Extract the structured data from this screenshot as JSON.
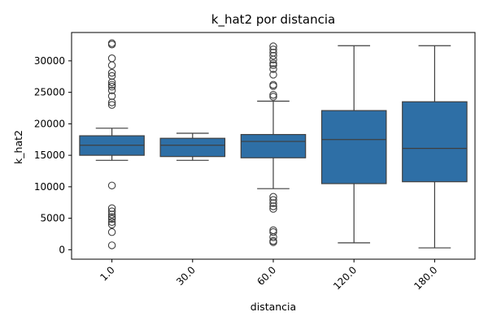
{
  "chart_data": {
    "type": "box",
    "title": "k_hat2 por distancia",
    "xlabel": "distancia",
    "ylabel": "k_hat2",
    "ylim": [
      -1500,
      34500
    ],
    "yticks": [
      0,
      5000,
      10000,
      15000,
      20000,
      25000,
      30000
    ],
    "grid": false,
    "box_color": "#2e6fa6",
    "categories": [
      "1.0",
      "30.0",
      "60.0",
      "120.0",
      "180.0"
    ],
    "boxes": [
      {
        "category": "1.0",
        "whisker_low": 14200,
        "q1": 15000,
        "median": 16600,
        "q3": 18100,
        "whisker_high": 19300,
        "outliers": [
          700,
          2800,
          4000,
          4400,
          4900,
          5200,
          5600,
          6100,
          6600,
          10200,
          23000,
          23400,
          24400,
          25300,
          25900,
          26200,
          26600,
          27600,
          28100,
          29300,
          30400,
          32600,
          32800
        ]
      },
      {
        "category": "30.0",
        "whisker_low": 14200,
        "q1": 14800,
        "median": 16600,
        "q3": 17700,
        "whisker_high": 18500,
        "outliers": []
      },
      {
        "category": "60.0",
        "whisker_low": 9700,
        "q1": 14600,
        "median": 17200,
        "q3": 18300,
        "whisker_high": 23600,
        "outliers": [
          1200,
          1400,
          2000,
          2800,
          3100,
          6500,
          6900,
          7400,
          7900,
          8400,
          24300,
          24600,
          26000,
          26200,
          27800,
          28700,
          29300,
          29600,
          30200,
          30800,
          31300,
          31800,
          32300
        ]
      },
      {
        "category": "120.0",
        "whisker_low": 1100,
        "q1": 10500,
        "median": 17500,
        "q3": 22100,
        "whisker_high": 32400,
        "outliers": []
      },
      {
        "category": "180.0",
        "whisker_low": 300,
        "q1": 10800,
        "median": 16100,
        "q3": 23500,
        "whisker_high": 32400,
        "outliers": []
      }
    ]
  }
}
